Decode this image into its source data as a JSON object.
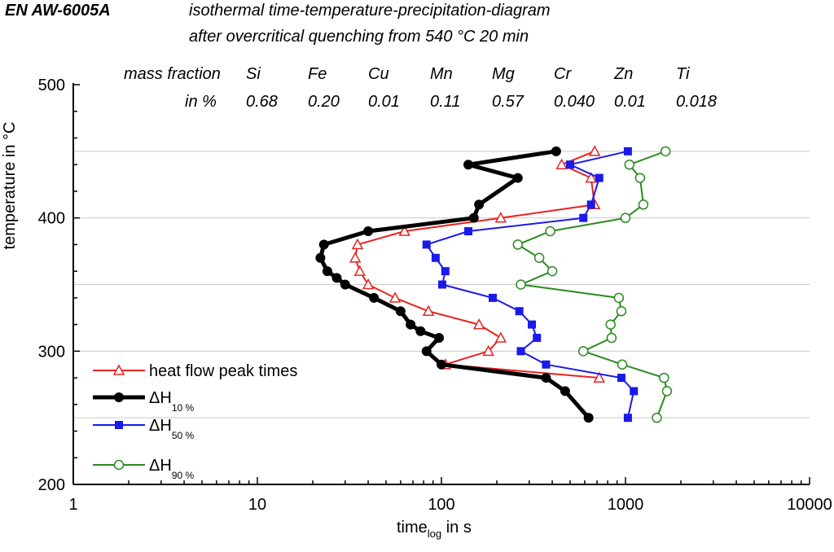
{
  "header": {
    "alloy": "EN AW-6005A",
    "subtitle_line1": "isothermal time-temperature-precipitation-diagram",
    "subtitle_line2": "after overcritical quenching from 540 °C 20 min"
  },
  "composition": {
    "label_line1": "mass fraction",
    "label_line2": "in %",
    "elements": [
      {
        "symbol": "Si",
        "value": "0.68"
      },
      {
        "symbol": "Fe",
        "value": "0.20"
      },
      {
        "symbol": "Cu",
        "value": "0.01"
      },
      {
        "symbol": "Mn",
        "value": "0.11"
      },
      {
        "symbol": "Mg",
        "value": "0.57"
      },
      {
        "symbol": "Cr",
        "value": "0.040"
      },
      {
        "symbol": "Zn",
        "value": "0.01"
      },
      {
        "symbol": "Ti",
        "value": "0.018"
      }
    ]
  },
  "chart_data": {
    "type": "line",
    "xscale": "log",
    "xlim": [
      1,
      10000
    ],
    "ylim": [
      200,
      500
    ],
    "x_ticks": [
      "1",
      "10",
      "100",
      "1000",
      "10000"
    ],
    "y_ticks": [
      "200",
      "300",
      "400",
      "500"
    ],
    "ylabel": "temperature in °C",
    "xlabel_main": "time",
    "xlabel_sub": "log",
    "xlabel_rest": " in s",
    "horizontal_gridlines": [
      250,
      300,
      350,
      400,
      450
    ],
    "series": [
      {
        "name": "heat flow peak times",
        "sub": "",
        "color": "#e8231f",
        "marker": "triangle-open",
        "width": 2,
        "points": [
          [
            680,
            450
          ],
          [
            450,
            440
          ],
          [
            650,
            430
          ],
          [
            680,
            410
          ],
          [
            210,
            400
          ],
          [
            63,
            390
          ],
          [
            35,
            380
          ],
          [
            34,
            370
          ],
          [
            36,
            360
          ],
          [
            40,
            350
          ],
          [
            56,
            340
          ],
          [
            85,
            330
          ],
          [
            160,
            320
          ],
          [
            210,
            310
          ],
          [
            180,
            300
          ],
          [
            105,
            290
          ],
          [
            720,
            280
          ]
        ]
      },
      {
        "name": "ΔH",
        "sub": "10 %",
        "color": "#000000",
        "marker": "circle-filled",
        "width": 5,
        "points": [
          [
            420,
            450
          ],
          [
            140,
            440
          ],
          [
            260,
            430
          ],
          [
            160,
            410
          ],
          [
            150,
            400
          ],
          [
            40,
            390
          ],
          [
            23,
            380
          ],
          [
            22,
            370
          ],
          [
            24,
            360
          ],
          [
            27,
            355
          ],
          [
            30,
            350
          ],
          [
            43,
            340
          ],
          [
            60,
            330
          ],
          [
            68,
            320
          ],
          [
            77,
            315
          ],
          [
            97,
            310
          ],
          [
            83,
            300
          ],
          [
            100,
            290
          ],
          [
            370,
            280
          ],
          [
            470,
            270
          ],
          [
            630,
            250
          ]
        ]
      },
      {
        "name": "ΔH",
        "sub": "50 %",
        "color": "#1a1aeb",
        "marker": "square-filled",
        "width": 2,
        "points": [
          [
            1030,
            450
          ],
          [
            500,
            440
          ],
          [
            720,
            430
          ],
          [
            650,
            410
          ],
          [
            590,
            400
          ],
          [
            140,
            390
          ],
          [
            83,
            380
          ],
          [
            93,
            370
          ],
          [
            105,
            360
          ],
          [
            101,
            350
          ],
          [
            190,
            340
          ],
          [
            265,
            330
          ],
          [
            310,
            320
          ],
          [
            330,
            310
          ],
          [
            270,
            300
          ],
          [
            370,
            290
          ],
          [
            950,
            280
          ],
          [
            1110,
            270
          ],
          [
            1030,
            250
          ]
        ]
      },
      {
        "name": "ΔH",
        "sub": "90 %",
        "color": "#2a8a1f",
        "marker": "circle-open",
        "width": 2,
        "points": [
          [
            1650,
            450
          ],
          [
            1050,
            440
          ],
          [
            1200,
            430
          ],
          [
            1250,
            410
          ],
          [
            1000,
            400
          ],
          [
            390,
            390
          ],
          [
            260,
            380
          ],
          [
            340,
            370
          ],
          [
            400,
            360
          ],
          [
            270,
            350
          ],
          [
            920,
            340
          ],
          [
            950,
            330
          ],
          [
            830,
            320
          ],
          [
            840,
            310
          ],
          [
            590,
            300
          ],
          [
            960,
            290
          ],
          [
            1620,
            280
          ],
          [
            1680,
            270
          ],
          [
            1480,
            250
          ]
        ]
      }
    ]
  }
}
